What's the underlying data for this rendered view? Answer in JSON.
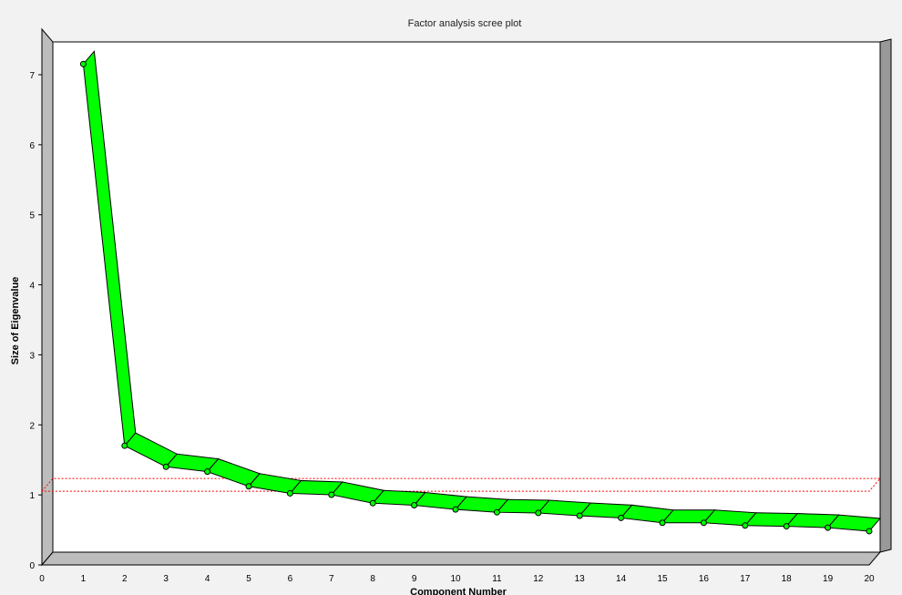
{
  "chart_data": {
    "type": "line",
    "title": "Factor analysis scree plot",
    "xlabel": "Component Number",
    "ylabel": "Size of Eigenvalue",
    "xlim": [
      0,
      20
    ],
    "ylim": [
      0,
      7
    ],
    "x_ticks": [
      "0",
      "1",
      "2",
      "3",
      "4",
      "5",
      "6",
      "7",
      "8",
      "9",
      "10",
      "11",
      "12",
      "13",
      "14",
      "15",
      "16",
      "17",
      "18",
      "19",
      "20"
    ],
    "y_ticks": [
      "0",
      "1",
      "2",
      "3",
      "4",
      "5",
      "6",
      "7"
    ],
    "series": [
      {
        "x": [
          1,
          2,
          3,
          4,
          5,
          6,
          7,
          8,
          9,
          10,
          11,
          12,
          13,
          14,
          15,
          16,
          17,
          18,
          19,
          20
        ],
        "values": [
          6.97,
          1.52,
          1.22,
          1.15,
          0.94,
          0.84,
          0.82,
          0.7,
          0.67,
          0.61,
          0.57,
          0.56,
          0.52,
          0.49,
          0.42,
          0.42,
          0.38,
          0.37,
          0.35,
          0.3
        ]
      }
    ],
    "reference_line": {
      "y": 1
    },
    "grid": false,
    "style": "3d-ribbon",
    "colors": {
      "series": "#00ff00",
      "reference": "#ff0000",
      "background": "#f2f2f2",
      "plot_area": "#ffffff",
      "wall": "#bdbdbd"
    }
  }
}
